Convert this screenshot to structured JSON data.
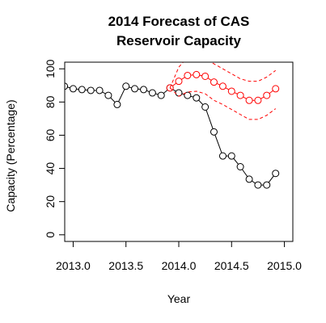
{
  "chart_data": {
    "type": "line",
    "title_lines": [
      "2014 Forecast of CAS",
      "Reservoir Capacity"
    ],
    "xlabel": "Year",
    "ylabel": "Capacity (Percentage)",
    "xlim": [
      2012.92,
      2015.08
    ],
    "ylim": [
      -4,
      104
    ],
    "x_ticks": [
      2013.0,
      2013.5,
      2014.0,
      2014.5,
      2015.0
    ],
    "x_tick_labels": [
      "2013.0",
      "2013.5",
      "2014.0",
      "2014.5",
      "2015.0"
    ],
    "y_ticks": [
      0,
      20,
      40,
      60,
      80,
      100
    ],
    "y_tick_labels": [
      "0",
      "20",
      "40",
      "60",
      "80",
      "100"
    ],
    "series": [
      {
        "color": "#000000",
        "style": "line-points",
        "x": [
          2012.917,
          2013.0,
          2013.083,
          2013.167,
          2013.25,
          2013.333,
          2013.417,
          2013.5,
          2013.583,
          2013.667,
          2013.75,
          2013.833,
          2013.917,
          2014.0,
          2014.083,
          2014.167,
          2014.25,
          2014.333,
          2014.417,
          2014.5,
          2014.583,
          2014.667,
          2014.75,
          2014.833,
          2014.917
        ],
        "y": [
          89.5,
          88.0,
          87.5,
          87.0,
          87.0,
          84.0,
          78.5,
          89.5,
          88.0,
          87.5,
          85.5,
          84.0,
          88.5,
          85.5,
          84.0,
          82.5,
          77.0,
          62.0,
          47.5,
          47.5,
          41.0,
          33.5,
          30.0,
          30.0,
          37.0
        ]
      },
      {
        "color": "#ff0000",
        "style": "line-points",
        "x": [
          2013.917,
          2014.0,
          2014.083,
          2014.167,
          2014.25,
          2014.333,
          2014.417,
          2014.5,
          2014.583,
          2014.667,
          2014.75,
          2014.833,
          2014.917
        ],
        "y": [
          88.5,
          92.5,
          96.0,
          96.5,
          95.5,
          92.0,
          89.5,
          86.5,
          84.0,
          81.0,
          81.0,
          84.0,
          88.0
        ]
      },
      {
        "color": "#ff0000",
        "style": "dashed",
        "x": [
          2013.917,
          2014.0,
          2014.083,
          2014.167,
          2014.25,
          2014.333,
          2014.417,
          2014.5,
          2014.583,
          2014.667,
          2014.75,
          2014.833,
          2014.917
        ],
        "y": [
          88.5,
          101.0,
          107.0,
          107.0,
          106.0,
          103.0,
          100.0,
          97.0,
          94.0,
          92.5,
          92.5,
          95.0,
          99.0
        ]
      },
      {
        "color": "#ff0000",
        "style": "dashed",
        "x": [
          2013.917,
          2014.0,
          2014.083,
          2014.167,
          2014.25,
          2014.333,
          2014.417,
          2014.5,
          2014.583,
          2014.667,
          2014.75,
          2014.833,
          2014.917
        ],
        "y": [
          88.5,
          83.5,
          86.0,
          86.5,
          85.0,
          81.0,
          78.5,
          75.5,
          72.5,
          69.5,
          69.5,
          72.0,
          76.0
        ]
      }
    ]
  }
}
